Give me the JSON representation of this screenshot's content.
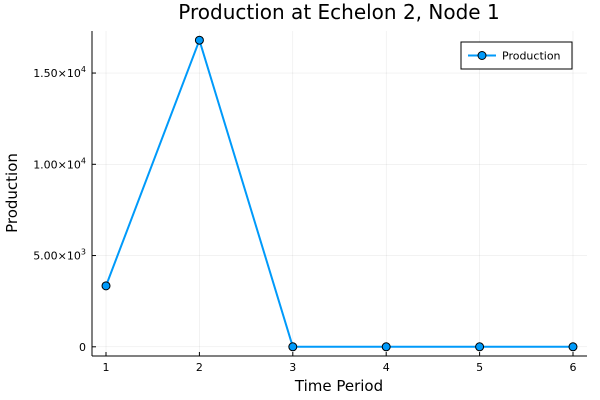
{
  "chart_data": {
    "type": "line",
    "title": "Production at Echelon 2, Node 1",
    "xlabel": "Time Period",
    "ylabel": "Production",
    "x": [
      1,
      2,
      3,
      4,
      5,
      6
    ],
    "series": [
      {
        "name": "Production",
        "values": [
          3340,
          16800,
          0,
          0,
          0,
          0
        ],
        "color": "#009AFA"
      }
    ],
    "xticks": [
      1,
      2,
      3,
      4,
      5,
      6
    ],
    "yticks": [
      {
        "value": 0,
        "mantissa": "0",
        "exponent": ""
      },
      {
        "value": 5000,
        "mantissa": "5.00×10",
        "exponent": "3"
      },
      {
        "value": 10000,
        "mantissa": "1.00×10",
        "exponent": "4"
      },
      {
        "value": 15000,
        "mantissa": "1.50×10",
        "exponent": "4"
      }
    ],
    "xlim": [
      0.85,
      6.15
    ],
    "ylim": [
      -504,
      17304
    ],
    "grid": true,
    "legend_position": "top-right"
  }
}
